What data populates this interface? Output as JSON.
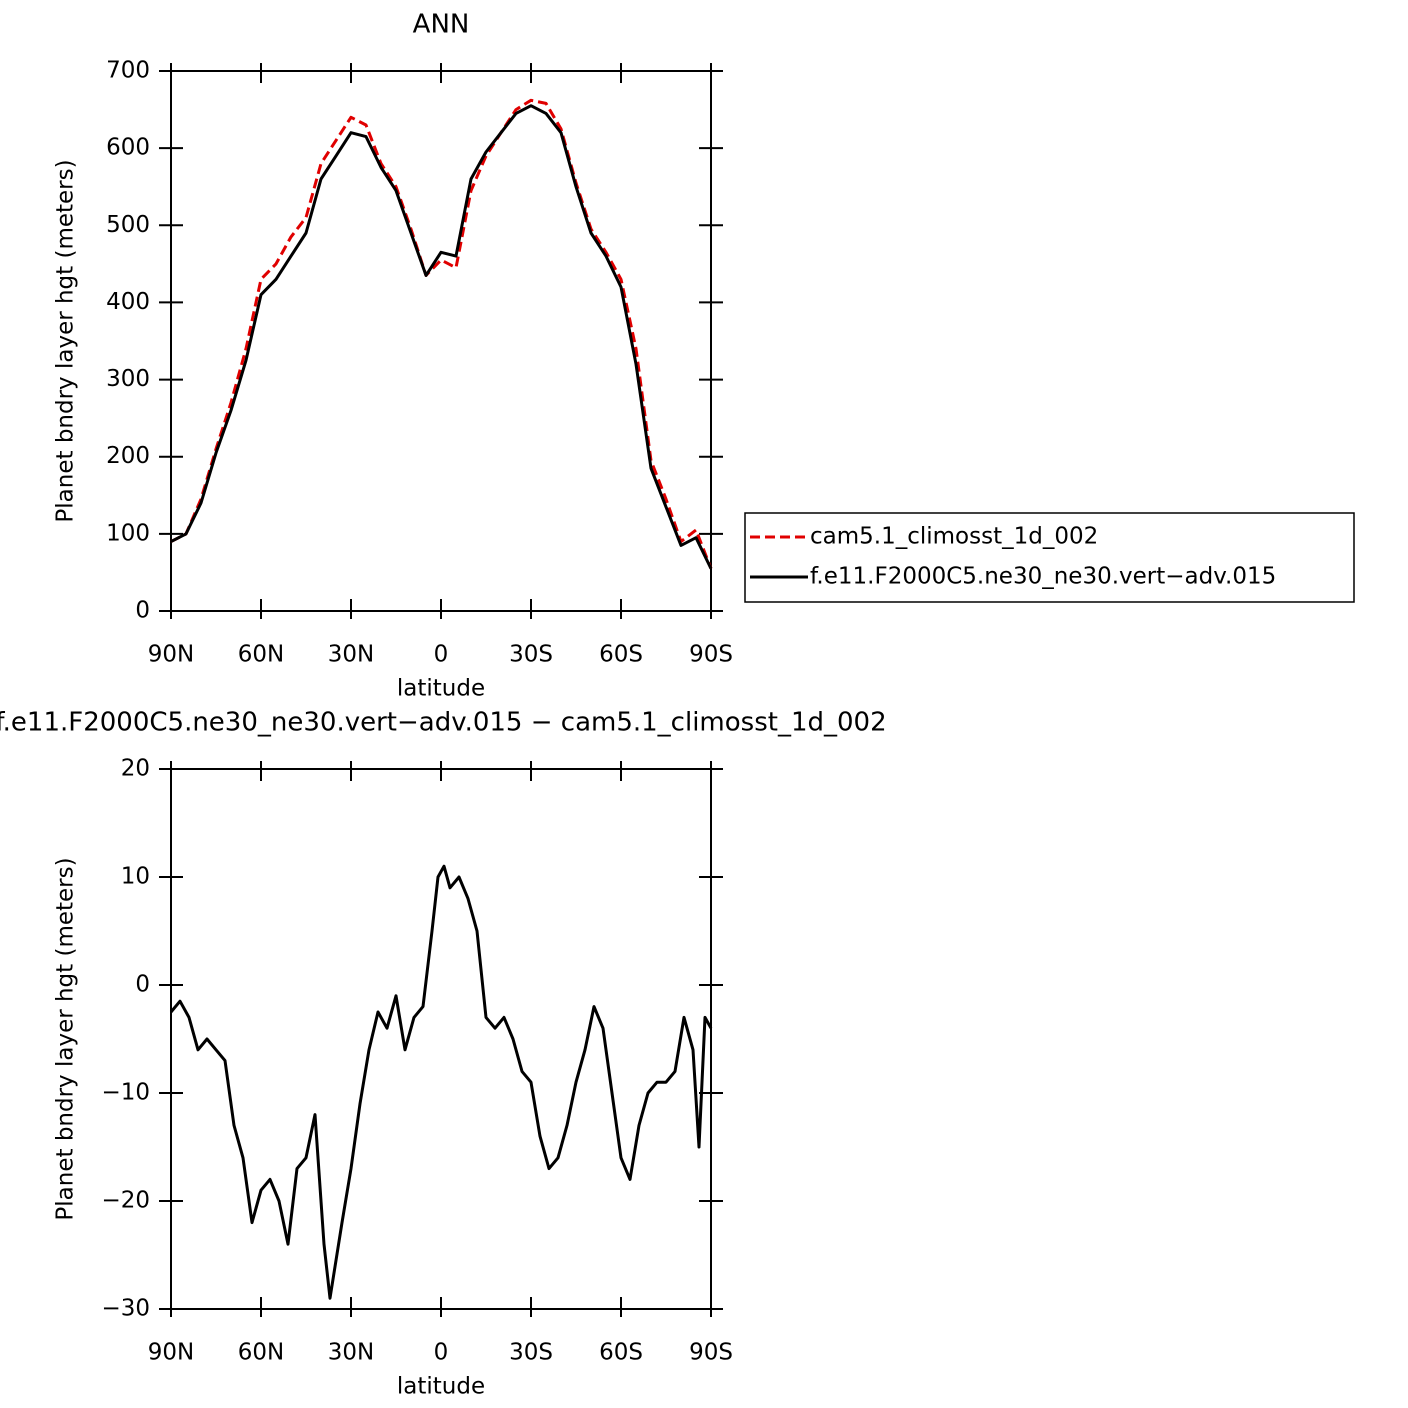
{
  "chart_data": [
    {
      "type": "line",
      "title": "ANN",
      "xlabel": "latitude",
      "ylabel": "Planet bndry layer hgt (meters)",
      "x": [
        90,
        85,
        80,
        75,
        70,
        65,
        60,
        55,
        50,
        45,
        40,
        35,
        30,
        25,
        20,
        15,
        10,
        5,
        0,
        -5,
        -10,
        -15,
        -20,
        -25,
        -30,
        -35,
        -40,
        -45,
        -50,
        -55,
        -60,
        -65,
        -70,
        -75,
        -80,
        -85,
        -90
      ],
      "series": [
        {
          "name": "cam5.1_climosst_1d_002",
          "color": "#e00000",
          "line_style": "dashed",
          "values": [
            90,
            100,
            145,
            210,
            270,
            340,
            430,
            450,
            485,
            510,
            580,
            610,
            640,
            630,
            580,
            550,
            495,
            435,
            455,
            445,
            545,
            590,
            620,
            650,
            662,
            658,
            625,
            555,
            495,
            465,
            430,
            340,
            195,
            145,
            90,
            105,
            55
          ]
        },
        {
          "name": "f.e11.F2000C5.ne30_ne30.vert−adv.015",
          "color": "#000000",
          "line_style": "solid",
          "values": [
            90,
            100,
            140,
            205,
            260,
            325,
            410,
            430,
            460,
            490,
            560,
            590,
            620,
            615,
            575,
            545,
            490,
            435,
            465,
            460,
            560,
            595,
            620,
            645,
            655,
            645,
            620,
            550,
            490,
            460,
            420,
            320,
            185,
            135,
            85,
            95,
            55
          ]
        }
      ],
      "xlim": [
        90,
        -90
      ],
      "xticks": [
        {
          "value": 90,
          "label": "90N"
        },
        {
          "value": 60,
          "label": "60N"
        },
        {
          "value": 30,
          "label": "30N"
        },
        0,
        {
          "value": -30,
          "label": "30S"
        },
        {
          "value": -60,
          "label": "60S"
        },
        {
          "value": -90,
          "label": "90S"
        }
      ],
      "ylim": [
        0,
        700
      ],
      "yticks": [
        0,
        100,
        200,
        300,
        400,
        500,
        600,
        700
      ],
      "legend": "right"
    },
    {
      "type": "line",
      "title": "f.e11.F2000C5.ne30_ne30.vert−adv.015 − cam5.1_climosst_1d_002",
      "xlabel": "latitude",
      "ylabel": "Planet bndry layer hgt (meters)",
      "x": [
        90,
        87,
        84,
        81,
        78,
        75,
        72,
        69,
        66,
        63,
        60,
        57,
        54,
        51,
        48,
        45,
        42,
        39,
        37,
        33,
        30,
        27,
        24,
        21,
        18,
        15,
        12,
        9,
        6,
        3,
        1,
        -1,
        -3,
        -6,
        -9,
        -12,
        -15,
        -18,
        -21,
        -24,
        -27,
        -30,
        -33,
        -36,
        -39,
        -42,
        -45,
        -48,
        -51,
        -54,
        -57,
        -60,
        -63,
        -66,
        -69,
        -72,
        -75,
        -78,
        -81,
        -84,
        -86,
        -88,
        -90
      ],
      "series": [
        {
          "color": "#000000",
          "line_style": "solid",
          "values": [
            -2.5,
            -1.5,
            -3,
            -6,
            -5,
            -6,
            -7,
            -13,
            -16,
            -22,
            -19,
            -18,
            -20,
            -24,
            -17,
            -16,
            -12,
            -24,
            -29,
            -22,
            -17,
            -11,
            -6,
            -2.5,
            -4,
            -1,
            -6,
            -3,
            -2,
            5,
            10,
            11,
            9,
            10,
            8,
            5,
            -3,
            -4,
            -3,
            -5,
            -8,
            -9,
            -14,
            -17,
            -16,
            -13,
            -9,
            -6,
            -2,
            -4,
            -10,
            -16,
            -18,
            -13,
            -10,
            -9,
            -9,
            -8,
            -3,
            -6,
            -15,
            -3,
            -4
          ]
        }
      ],
      "xlim": [
        90,
        -90
      ],
      "xticks": [
        {
          "value": 90,
          "label": "90N"
        },
        {
          "value": 60,
          "label": "60N"
        },
        {
          "value": 30,
          "label": "30N"
        },
        0,
        {
          "value": -30,
          "label": "30S"
        },
        {
          "value": -60,
          "label": "60S"
        },
        {
          "value": -90,
          "label": "90S"
        }
      ],
      "ylim": [
        -30,
        20
      ],
      "yticks": [
        {
          "value": -30,
          "label": "−30"
        },
        {
          "value": -20,
          "label": "−20"
        },
        {
          "value": -10,
          "label": "−10"
        },
        0,
        10,
        20
      ]
    }
  ]
}
